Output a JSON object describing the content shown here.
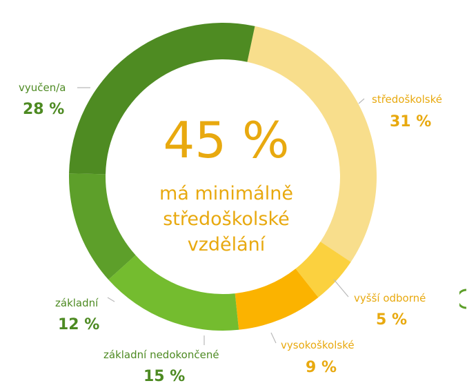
{
  "center": {
    "headline": "45 %",
    "line1": "má minimálně",
    "line2": "středoškolské",
    "line3": "vzdělání"
  },
  "colors": {
    "text_green": "#4d8a22",
    "text_gold": "#e8a90f",
    "connector": "#b9b9b9"
  },
  "chart_data": {
    "type": "pie",
    "donut": true,
    "start": "top, clockwise",
    "slices": [
      {
        "label": "středoškolské",
        "value": 31,
        "value_text": "31 %",
        "color": "#f8de8c"
      },
      {
        "label": "vyšší odborné",
        "value": 5,
        "value_text": "5 %",
        "color": "#fbd13f"
      },
      {
        "label": "vysokoškolské",
        "value": 9,
        "value_text": "9 %",
        "color": "#fbb300"
      },
      {
        "label": "základní nedokončené",
        "value": 15,
        "value_text": "15 %",
        "color": "#74bc2f"
      },
      {
        "label": "základní",
        "value": 12,
        "value_text": "12 %",
        "color": "#5d9f2a"
      },
      {
        "label": "vyučen/a",
        "value": 28,
        "value_text": "28 %",
        "color": "#4e8b22"
      }
    ]
  }
}
